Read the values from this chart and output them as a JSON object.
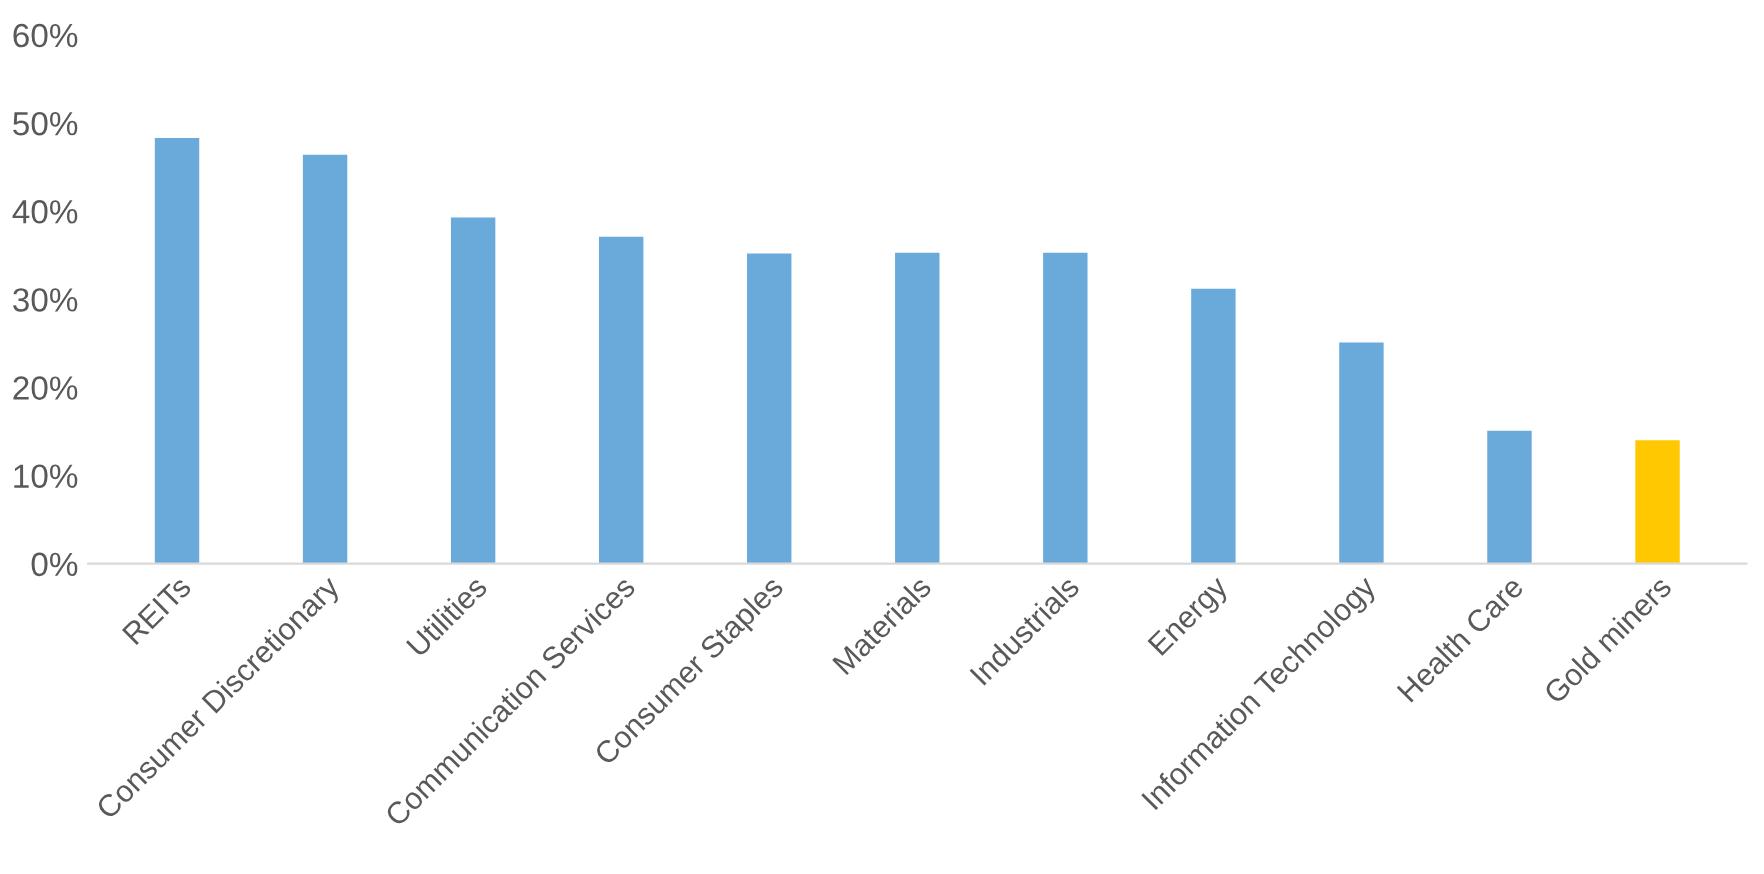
{
  "chart_data": {
    "type": "bar",
    "categories": [
      "REITs",
      "Consumer Discretionary",
      "Utilities",
      "Communication Services",
      "Consumer Staples",
      "Materials",
      "Industrials",
      "Energy",
      "Information Technology",
      "Health Care",
      "Gold miners"
    ],
    "values": [
      48.3,
      46.4,
      39.3,
      37.1,
      35.2,
      35.3,
      35.3,
      31.2,
      25.1,
      15.1,
      14.0
    ],
    "colors": [
      "#6aaadb",
      "#6aaadb",
      "#6aaadb",
      "#6aaadb",
      "#6aaadb",
      "#6aaadb",
      "#6aaadb",
      "#6aaadb",
      "#6aaadb",
      "#6aaadb",
      "#ffc800"
    ],
    "ylim": [
      0,
      60
    ],
    "yticks": [
      {
        "value": 0,
        "label": "0%"
      },
      {
        "value": 10,
        "label": "10%"
      },
      {
        "value": 20,
        "label": "20%"
      },
      {
        "value": 30,
        "label": "30%"
      },
      {
        "value": 40,
        "label": "40%"
      },
      {
        "value": 50,
        "label": "50%"
      },
      {
        "value": 60,
        "label": "60%"
      }
    ],
    "grid": false,
    "legend": false
  }
}
